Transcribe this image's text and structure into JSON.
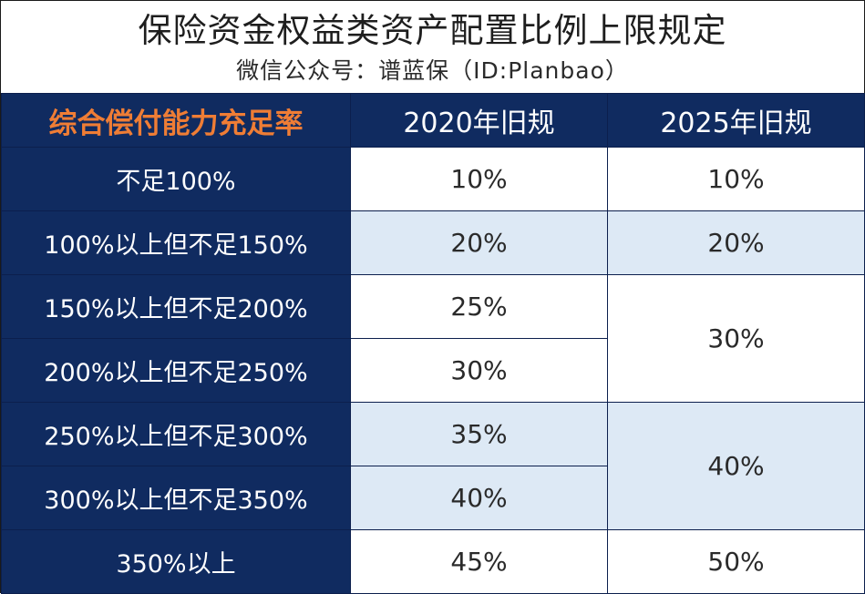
{
  "title": "保险资金权益类资产配置比例上限规定",
  "subtitle": "微信公众号：谱蓝保（ID:Planbao）",
  "table": {
    "headers": [
      "综合偿付能力充足率",
      "2020年旧规",
      "2025年旧规"
    ],
    "rows": [
      {
        "ratio": "不足100%",
        "old2020": "10%",
        "new2025": "10%"
      },
      {
        "ratio": "100%以上但不足150%",
        "old2020": "20%",
        "new2025": "20%"
      },
      {
        "ratio": "150%以上但不足200%",
        "old2020": "25%",
        "new2025": "30%"
      },
      {
        "ratio": "200%以上但不足250%",
        "old2020": "30%"
      },
      {
        "ratio": "250%以上但不足300%",
        "old2020": "35%",
        "new2025": "40%"
      },
      {
        "ratio": "300%以上但不足350%",
        "old2020": "40%"
      },
      {
        "ratio": "350%以上",
        "old2020": "45%",
        "new2025": "50%"
      }
    ]
  },
  "colors": {
    "header_bg": "#102b60",
    "header_accent_text": "#ef7d35",
    "band_blue": "#dde9f5"
  }
}
